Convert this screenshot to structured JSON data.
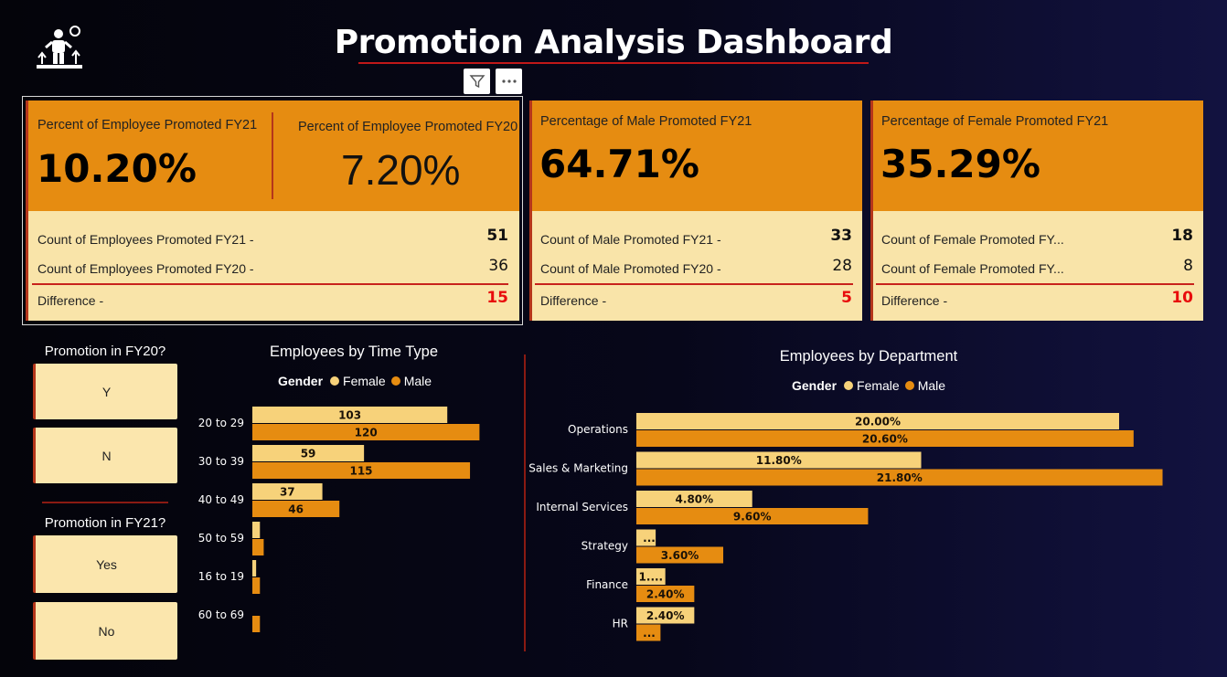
{
  "header": {
    "title": "Promotion Analysis Dashboard",
    "logo_icon": "employee-promotion-icon",
    "filter_icon": "filter-icon",
    "more_icon": "more-options-icon"
  },
  "colors": {
    "female": "#f7d27a",
    "male": "#e68c11",
    "card_top": "#e68c11",
    "card_bottom": "#f9e4a9",
    "accent_red": "#e80c0c"
  },
  "cards": {
    "overall": {
      "fy21_label": "Percent of Employee Promoted FY21",
      "fy21_value": "10.20%",
      "fy20_label": "Percent of Employee Promoted FY20",
      "fy20_value": "7.20%",
      "rows": [
        {
          "label": "Count of Employees Promoted FY21 -",
          "value": "51"
        },
        {
          "label": "Count of Employees Promoted FY20 -",
          "value": "36"
        }
      ],
      "diff_label": "Difference -",
      "diff_value": "15"
    },
    "male": {
      "label": "Percentage of Male Promoted FY21",
      "value": "64.71%",
      "rows": [
        {
          "label": "Count of Male Promoted FY21 -",
          "value": "33"
        },
        {
          "label": "Count of Male Promoted FY20 -",
          "value": "28"
        }
      ],
      "diff_label": "Difference -",
      "diff_value": "5"
    },
    "female": {
      "label": "Percentage of Female Promoted FY21",
      "value": "35.29%",
      "rows": [
        {
          "label": "Count of Female Promoted FY...",
          "value": "18"
        },
        {
          "label": "Count of Female Promoted FY...",
          "value": "8"
        }
      ],
      "diff_label": "Difference -",
      "diff_value": "10"
    }
  },
  "slicers": {
    "fy20": {
      "title": "Promotion in FY20?",
      "options": [
        "Y",
        "N"
      ]
    },
    "fy21": {
      "title": "Promotion in FY21?",
      "options": [
        "Yes",
        "No"
      ]
    }
  },
  "legend": {
    "title": "Gender",
    "female": "Female",
    "male": "Male"
  },
  "chart_data": [
    {
      "type": "bar",
      "orientation": "horizontal",
      "title": "Employees by Time Type",
      "legend_title": "Gender",
      "categories": [
        "20 to 29",
        "30 to 39",
        "40 to 49",
        "50 to 59",
        "16 to 19",
        "60 to 69"
      ],
      "series": [
        {
          "name": "Female",
          "values": [
            103,
            59,
            37,
            4,
            2,
            0
          ],
          "labels": [
            "103",
            "59",
            "37",
            "",
            "",
            ""
          ]
        },
        {
          "name": "Male",
          "values": [
            120,
            115,
            46,
            6,
            4,
            4
          ],
          "labels": [
            "120",
            "115",
            "46",
            "",
            "",
            ""
          ]
        }
      ]
    },
    {
      "type": "bar",
      "orientation": "horizontal",
      "title": "Employees by Department",
      "legend_title": "Gender",
      "categories": [
        "Operations",
        "Sales & Marketing",
        "Internal Services",
        "Strategy",
        "Finance",
        "HR"
      ],
      "series": [
        {
          "name": "Female",
          "values": [
            20.0,
            11.8,
            4.8,
            0.8,
            1.2,
            2.4
          ],
          "labels": [
            "20.00%",
            "11.80%",
            "4.80%",
            "...",
            "1....",
            "2.40%"
          ]
        },
        {
          "name": "Male",
          "values": [
            20.6,
            21.8,
            9.6,
            3.6,
            2.4,
            1.0
          ],
          "labels": [
            "20.60%",
            "21.80%",
            "9.60%",
            "3.60%",
            "2.40%",
            "..."
          ]
        }
      ]
    }
  ]
}
